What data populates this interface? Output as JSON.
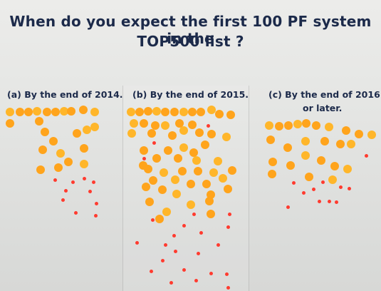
{
  "poster": {
    "title_line_1": "When do you expect the first 100 PF system in the",
    "title_line_2": "TOP500 list ?",
    "options": [
      {
        "id": "a",
        "label": "(a) By the end of 2014."
      },
      {
        "id": "b",
        "label": "(b) By the end of 2015."
      },
      {
        "id": "c",
        "label_line_1": "(c) By the end of 2016",
        "label_line_2": "or later."
      }
    ],
    "colors": {
      "title": "#1c2a4a",
      "dot_orange": "#ffa41c",
      "dot_yellow_orange": "#ffb62a",
      "dot_red": "#ff3b2f"
    },
    "icons": [
      "vote-sticker-dot"
    ]
  }
}
